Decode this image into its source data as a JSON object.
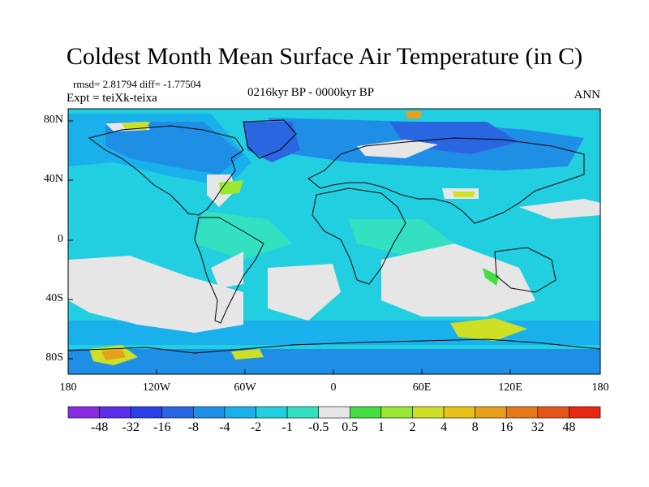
{
  "title": "Coldest Month Mean Surface Air Temperature (in C)",
  "stats": "rmsd= 2.81794 diff= -1.77504",
  "experiment": "Expt = teiXk-teixa",
  "period": "0216kyr BP - 0000kyr BP",
  "season": "ANN",
  "map": {
    "y_ticks": [
      "80N",
      "40N",
      "0",
      "40S",
      "80S"
    ],
    "x_ticks": [
      "180",
      "120W",
      "60W",
      "0",
      "60E",
      "120E",
      "180"
    ]
  },
  "colorbar": {
    "labels": [
      "-48",
      "-32",
      "-16",
      "-8",
      "-4",
      "-2",
      "-1",
      "-0.5",
      "0.5",
      "1",
      "2",
      "4",
      "8",
      "16",
      "32",
      "48"
    ],
    "colors": [
      "#8a2be2",
      "#5a2ee6",
      "#2a3fe6",
      "#2a66e0",
      "#1f8fe6",
      "#1ab0ec",
      "#22cfe0",
      "#33e0c0",
      "#e6e6e6",
      "#44dd44",
      "#99e633",
      "#cde025",
      "#e6c31a",
      "#e6a01a",
      "#e67a1a",
      "#e6551a",
      "#e62a12"
    ]
  },
  "palette": {
    "ocean": "#22cfe0",
    "ocean_light": "#33e0c0",
    "neutral": "#e6e6e6",
    "cool": "#1ab0ec",
    "cooler": "#1f8fe6",
    "cold": "#2a66e0",
    "warm_green": "#44dd44",
    "warm_yellow": "#cde025",
    "warm_orange": "#e6a01a"
  }
}
